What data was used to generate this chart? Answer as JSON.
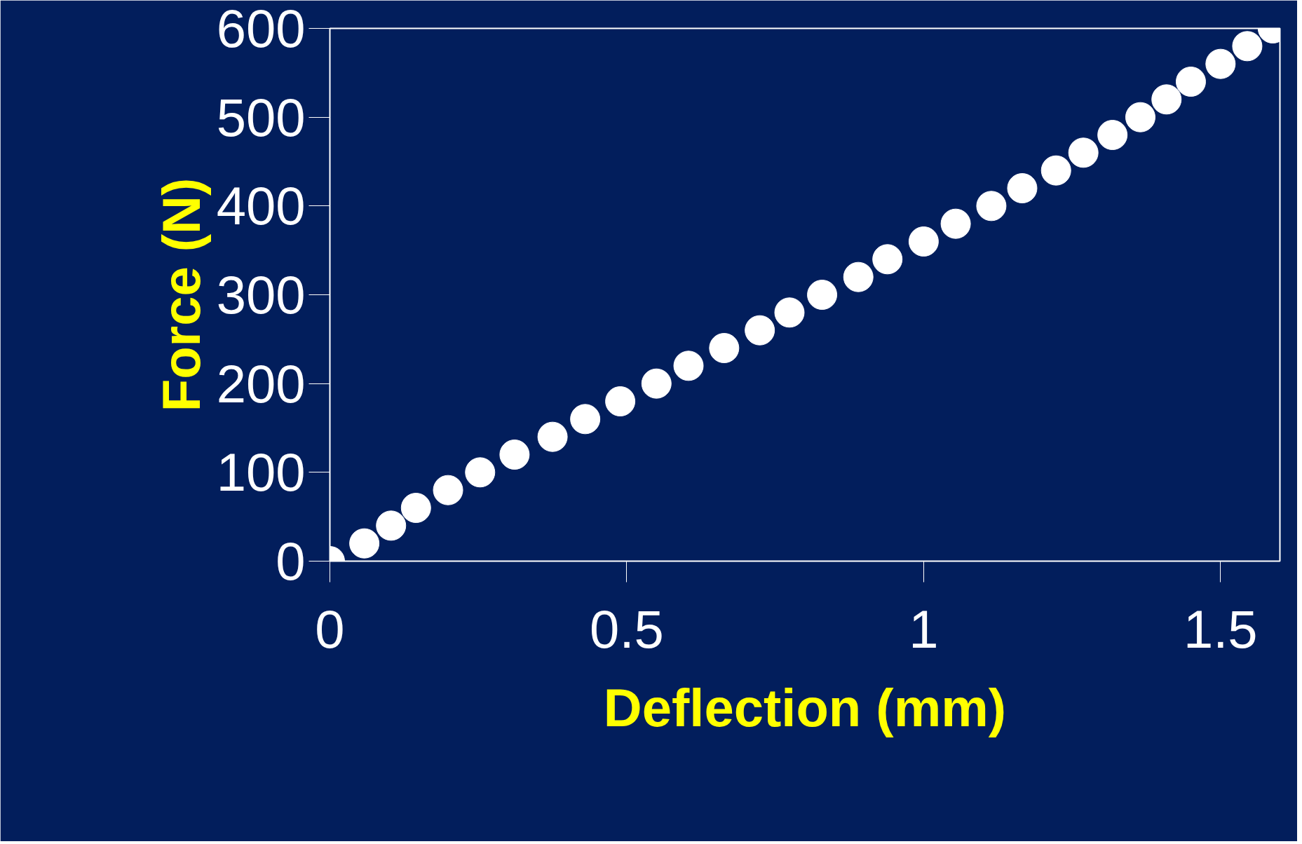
{
  "chart_data": {
    "type": "scatter",
    "xlabel": "Deflection (mm)",
    "ylabel": "Force (N)",
    "x": [
      0,
      0.058,
      0.103,
      0.145,
      0.199,
      0.253,
      0.311,
      0.375,
      0.43,
      0.489,
      0.55,
      0.604,
      0.664,
      0.724,
      0.774,
      0.829,
      0.89,
      0.939,
      1.0,
      1.054,
      1.114,
      1.166,
      1.223,
      1.269,
      1.318,
      1.365,
      1.409,
      1.45,
      1.5,
      1.545,
      1.588
    ],
    "series": [
      {
        "color": "#ffffff",
        "values": [
          0,
          20,
          40,
          60,
          80,
          100,
          120,
          140,
          160,
          180,
          200,
          220,
          240,
          260,
          280,
          300,
          320,
          340,
          360,
          380,
          400,
          420,
          440,
          460,
          480,
          500,
          520,
          540,
          560,
          580,
          600
        ]
      }
    ],
    "xlim": [
      0,
      1.6
    ],
    "ylim": [
      0,
      600
    ],
    "xticks": [
      0,
      0.5,
      1,
      1.5
    ],
    "yticks": [
      0,
      100,
      200,
      300,
      400,
      500,
      600
    ],
    "grid": false,
    "marker": "circle"
  }
}
